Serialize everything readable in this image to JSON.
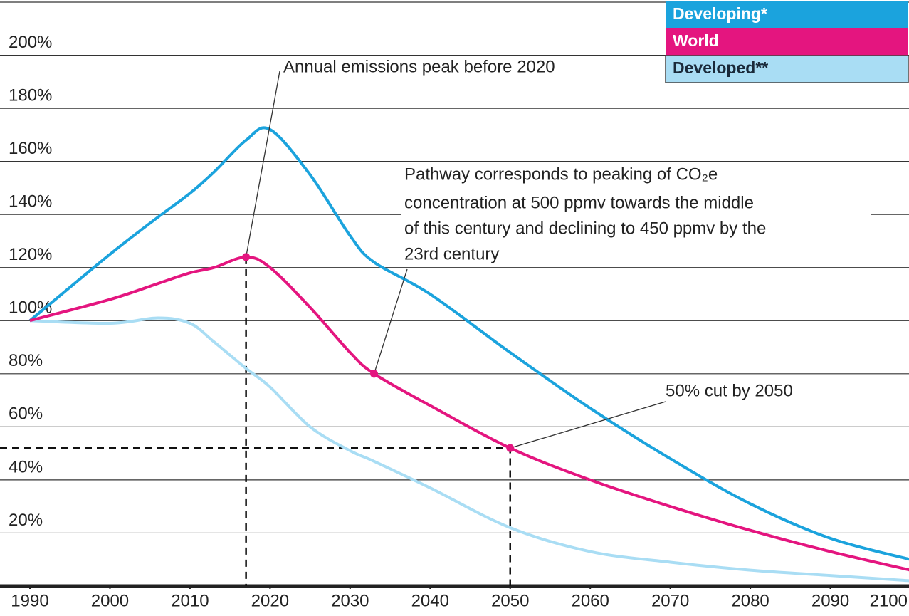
{
  "chart_data": {
    "type": "line",
    "x": [
      1990,
      2000,
      2006,
      2010,
      2013,
      2017,
      2020,
      2025,
      2030,
      2033,
      2040,
      2050,
      2060,
      2070,
      2080,
      2090,
      2100
    ],
    "xlim": [
      1990,
      2100
    ],
    "xticks": [
      1990,
      2000,
      2010,
      2020,
      2030,
      2040,
      2050,
      2060,
      2070,
      2080,
      2090,
      2100
    ],
    "ylim": [
      0,
      220
    ],
    "yticks": [
      {
        "value": 20,
        "label": "20%"
      },
      {
        "value": 40,
        "label": "40%"
      },
      {
        "value": 60,
        "label": "60%"
      },
      {
        "value": 80,
        "label": "80%"
      },
      {
        "value": 100,
        "label": "100%"
      },
      {
        "value": 120,
        "label": "120%"
      },
      {
        "value": 140,
        "label": "140%"
      },
      {
        "value": 160,
        "label": "160%"
      },
      {
        "value": 180,
        "label": "180%"
      },
      {
        "value": 200,
        "label": "200%"
      }
    ],
    "grid": true,
    "legend": "top-right",
    "series": [
      {
        "name": "Developing*",
        "color": "#1ba3dd",
        "values": [
          100,
          125,
          139,
          148,
          156,
          168,
          172,
          155,
          132,
          122,
          110,
          88,
          67,
          48,
          31,
          18,
          10
        ]
      },
      {
        "name": "World",
        "color": "#e4157f",
        "values": [
          100,
          108,
          114,
          118,
          120,
          124,
          120,
          105,
          88,
          80,
          68,
          52,
          40,
          30,
          21,
          13,
          6
        ]
      },
      {
        "name": "Developed**",
        "color": "#a9ddf4",
        "values": [
          100,
          99,
          101,
          99,
          92,
          82,
          75,
          60,
          51,
          47,
          37,
          22,
          13,
          9,
          6,
          4,
          2
        ]
      }
    ],
    "annotations": [
      "Annual emissions peak before 2020",
      "Pathway corresponds to peaking of CO₂e",
      "concentration at 500 ppmv towards the middle",
      "of this century and declining to 450 ppmv by the",
      "23rd century",
      "50% cut by 2050"
    ]
  }
}
